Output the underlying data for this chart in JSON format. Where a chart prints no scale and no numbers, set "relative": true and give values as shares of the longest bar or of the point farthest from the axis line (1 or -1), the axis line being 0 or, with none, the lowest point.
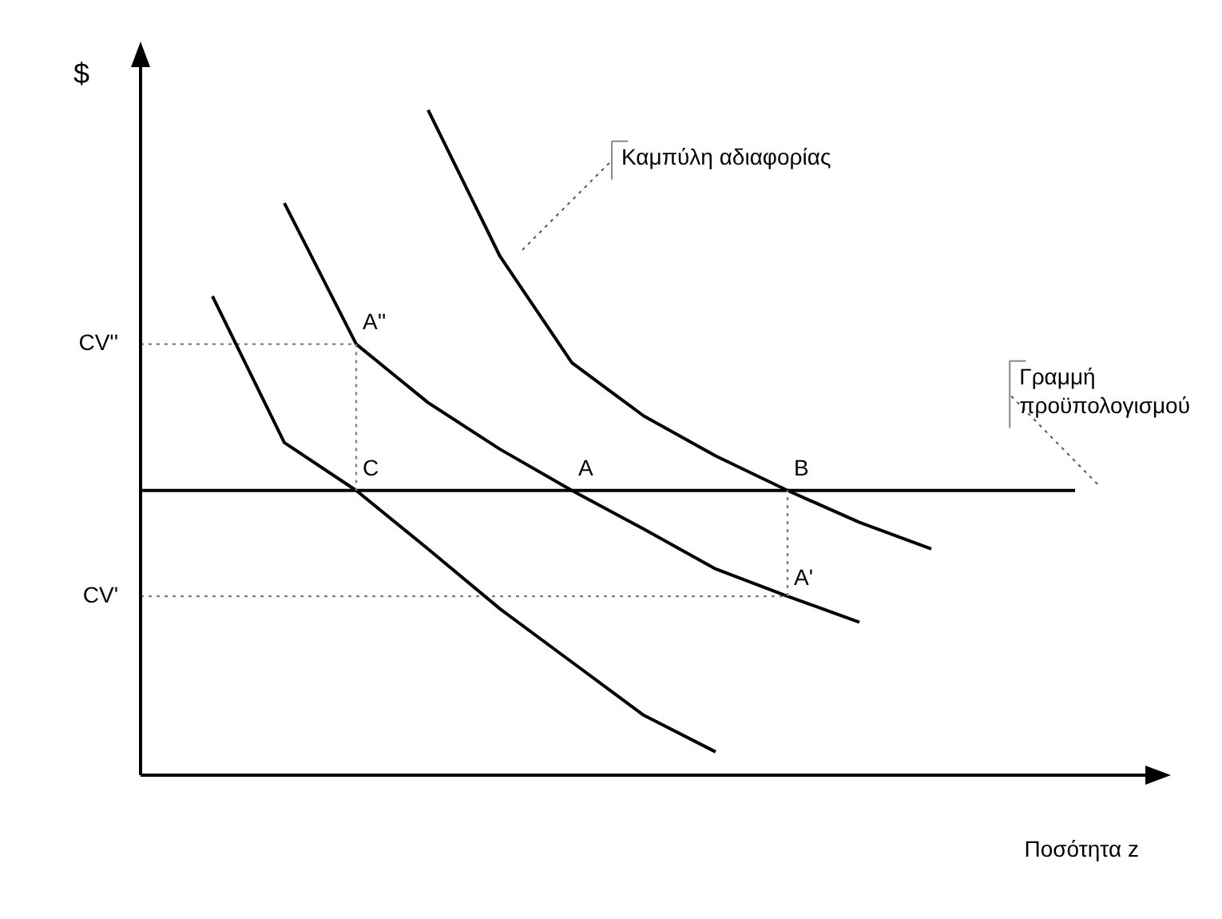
{
  "chart_data": {
    "type": "line",
    "relative": true,
    "ylabel": "$",
    "xlabel": "Ποσότητα z",
    "legend": false,
    "marker": "none",
    "categories": [
      null,
      null,
      null,
      null,
      null,
      null,
      null,
      null,
      null,
      null,
      null,
      null,
      null,
      null
    ],
    "series": [
      {
        "color": "#000000",
        "values": [
          null,
          0.72,
          0.5,
          0.428,
          0.34,
          0.25,
          0.17,
          0.09,
          0.035,
          null,
          null,
          null,
          null,
          null
        ]
      },
      {
        "color": "#000000",
        "values": [
          null,
          null,
          0.86,
          0.648,
          0.56,
          0.49,
          0.428,
          0.37,
          0.31,
          0.269,
          0.23,
          null,
          null,
          null
        ]
      },
      {
        "color": "#000000",
        "values": [
          null,
          null,
          null,
          null,
          1,
          0.78,
          0.62,
          0.54,
          0.48,
          0.428,
          0.38,
          0.34,
          null,
          null
        ]
      },
      {
        "color": "#000000",
        "values": [
          0.428,
          0.428,
          0.428,
          0.428,
          0.428,
          0.428,
          0.428,
          0.428,
          0.428,
          0.428,
          0.428,
          0.428,
          0.428,
          0.428
        ]
      },
      {
        "color": "#808080",
        "line_style": "dotted",
        "values": [
          0.648,
          0.648,
          0.648,
          0.648,
          null,
          null,
          null,
          null,
          null,
          null,
          null,
          null,
          null,
          null
        ]
      },
      {
        "color": "#808080",
        "line_style": "dotted",
        "values": [
          0.269,
          0.269,
          0.269,
          0.269,
          0.269,
          0.269,
          0.269,
          0.269,
          0.269,
          0.269,
          null,
          null,
          null,
          null
        ]
      }
    ],
    "annotations": [
      "A''",
      "C",
      "A",
      "B",
      "A'",
      "CV''",
      "CV'",
      "Καμπύλη αδιαφορίας",
      "Γραμμή προϋπολογισμού"
    ]
  }
}
